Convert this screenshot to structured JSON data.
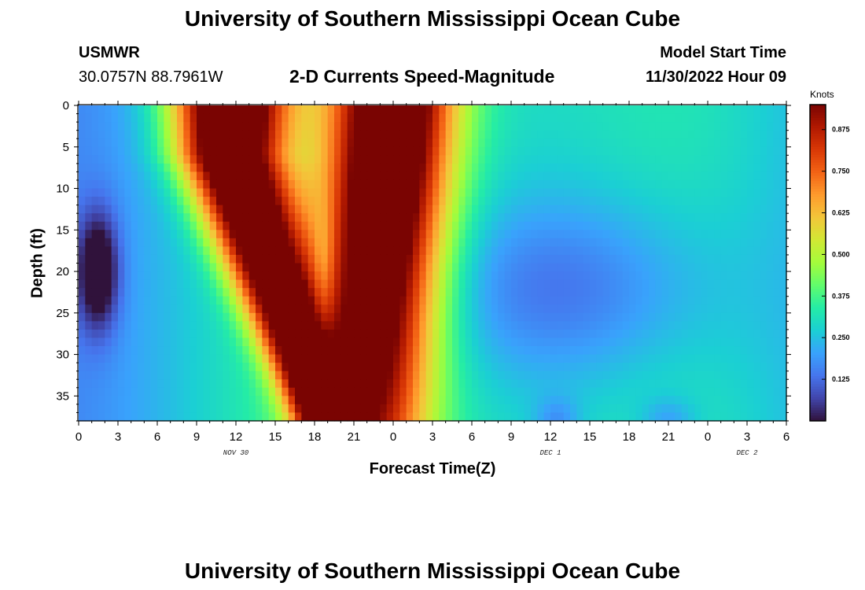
{
  "header": {
    "title": "University of Southern Mississippi Ocean Cube",
    "station": "USMWR",
    "coordinates": "30.0757N  88.7961W",
    "subtitle": "2-D Currents Speed-Magnitude",
    "model_start_label": "Model Start Time",
    "model_start_value": "11/30/2022 Hour 09"
  },
  "footer": {
    "title": "University of Southern Mississippi Ocean Cube"
  },
  "chart_data": {
    "type": "heatmap",
    "title": "2-D Currents Speed-Magnitude",
    "xlabel": "Forecast Time(Z)",
    "ylabel": "Depth (ft)",
    "x_range_hours": [
      0,
      54
    ],
    "x_ticks": [
      "0",
      "3",
      "6",
      "9",
      "12",
      "15",
      "18",
      "21",
      "0",
      "3",
      "6",
      "9",
      "12",
      "15",
      "18",
      "21",
      "0",
      "3",
      "6"
    ],
    "date_labels": [
      {
        "hour": 12,
        "text": "NOV 30"
      },
      {
        "hour": 36,
        "text": "DEC 1"
      },
      {
        "hour": 51,
        "text": "DEC 2"
      }
    ],
    "y_range_ft": [
      0,
      38
    ],
    "y_ticks": [
      0,
      5,
      10,
      15,
      20,
      25,
      30,
      35
    ],
    "colorbar": {
      "label": "Knots",
      "min": 0,
      "max": 0.95,
      "ticks": [
        "0.125",
        "0.250",
        "0.375",
        "0.500",
        "0.625",
        "0.750",
        "0.875"
      ],
      "colormap": [
        "#30123b",
        "#4145ab",
        "#4675ed",
        "#39a2fc",
        "#1bcfd4",
        "#24eca6",
        "#61fc6c",
        "#a4fc3b",
        "#d1e834",
        "#f3c63a",
        "#fe9b2d",
        "#f36315",
        "#d93806",
        "#b11901",
        "#7a0402"
      ]
    },
    "features": {
      "peak1": {
        "center_hour": 12,
        "max_knots": 0.93
      },
      "peak2": {
        "center_hour": 24,
        "max_knots": 0.86
      },
      "low_spot": {
        "hour": 1.5,
        "depth_ft": 20,
        "knots": 0.0
      }
    }
  }
}
